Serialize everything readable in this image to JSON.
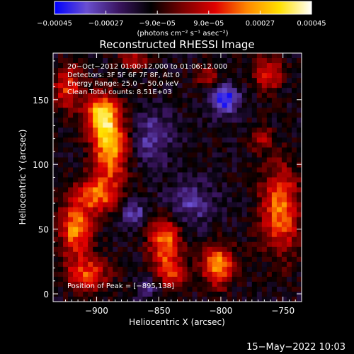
{
  "chart_data": {
    "type": "heatmap",
    "title": "Reconstructed RHESSI Image",
    "xlabel": "Heliocentric X (arcsec)",
    "ylabel": "Heliocentric Y (arcsec)",
    "xlim": [
      -935,
      -735
    ],
    "ylim": [
      -6,
      186
    ],
    "x_ticks": [
      -900,
      -850,
      -800,
      -750
    ],
    "x_tick_labels": [
      "−900",
      "−850",
      "−800",
      "−750"
    ],
    "y_ticks": [
      0,
      50,
      100,
      150
    ],
    "y_tick_labels": [
      "0",
      "50",
      "100",
      "150"
    ],
    "colorbar": {
      "min": -0.00045,
      "max": 0.00045,
      "ticks": [
        -0.00045,
        -0.00027,
        -9e-05,
        9e-05,
        0.00027,
        0.00045
      ],
      "tick_labels": [
        "−0.00045",
        "−0.00027",
        "−9.0e−05",
        "9.0e−05",
        "0.00027",
        "0.00045"
      ],
      "units": "(photons cm⁻² s⁻¹ asec⁻²)",
      "colors": [
        "#0000ff",
        "#6a4fd0",
        "#3a1560",
        "#000000",
        "#7a0000",
        "#e00000",
        "#ff8800",
        "#ffe000",
        "#ffffff"
      ]
    },
    "annotations": [
      "20−Oct−2012 01:00:12.000 to 01:06:12.000",
      "Detectors: 3F 5F 6F 7F 8F, Att 0",
      "Energy Range: 25.0 − 50.0 keV",
      "Clean    Total counts: 8.51E+03"
    ],
    "peak_label": "Position of Peak = [−895,138]",
    "peak": {
      "x": -895,
      "y": 138
    },
    "sources": [
      {
        "x": -896,
        "y": 138,
        "sx": 9,
        "sy": 11,
        "amp": 1.0
      },
      {
        "x": -889,
        "y": 112,
        "sx": 10,
        "sy": 17,
        "amp": 0.9
      },
      {
        "x": -900,
        "y": 77,
        "sx": 12,
        "sy": 10,
        "amp": 0.7
      },
      {
        "x": -917,
        "y": 50,
        "sx": 9,
        "sy": 14,
        "amp": 0.8
      },
      {
        "x": -908,
        "y": 15,
        "sx": 12,
        "sy": 9,
        "amp": 0.65
      },
      {
        "x": -923,
        "y": 160,
        "sx": 8,
        "sy": 12,
        "amp": 0.6
      },
      {
        "x": -845,
        "y": 40,
        "sx": 9,
        "sy": 14,
        "amp": 0.75
      },
      {
        "x": -839,
        "y": 15,
        "sx": 8,
        "sy": 8,
        "amp": 0.5
      },
      {
        "x": -802,
        "y": 22,
        "sx": 9,
        "sy": 11,
        "amp": 0.85
      },
      {
        "x": -752,
        "y": 65,
        "sx": 11,
        "sy": 24,
        "amp": 0.75
      },
      {
        "x": -762,
        "y": 170,
        "sx": 8,
        "sy": 9,
        "amp": 0.6
      },
      {
        "x": -810,
        "y": 168,
        "sx": 7,
        "sy": 7,
        "amp": 0.35
      },
      {
        "x": -768,
        "y": 120,
        "sx": 6,
        "sy": 7,
        "amp": 0.4
      },
      {
        "x": -870,
        "y": 180,
        "sx": 8,
        "sy": 6,
        "amp": 0.4
      }
    ],
    "negative_regions": [
      {
        "x": -797,
        "y": 150,
        "sx": 8,
        "sy": 8,
        "amp": -0.7
      },
      {
        "x": -855,
        "y": 120,
        "sx": 12,
        "sy": 14,
        "amp": -0.35
      },
      {
        "x": -825,
        "y": 70,
        "sx": 14,
        "sy": 12,
        "amp": -0.35
      },
      {
        "x": -870,
        "y": 62,
        "sx": 7,
        "sy": 7,
        "amp": -0.4
      },
      {
        "x": -860,
        "y": 5,
        "sx": 6,
        "sy": 6,
        "amp": -0.35
      }
    ],
    "grid": false
  },
  "footer": {
    "timestamp": "15−May−2022 10:03"
  }
}
